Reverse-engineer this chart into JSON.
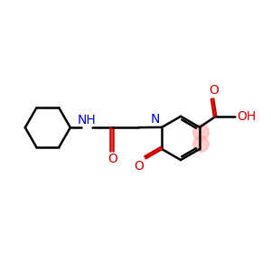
{
  "bg_color": "#ffffff",
  "bond_color": "#000000",
  "N_color": "#0000cc",
  "O_color": "#cc0000",
  "bond_width": 1.8,
  "font_size": 10,
  "figsize": [
    3.0,
    3.0
  ],
  "dpi": 100,
  "xlim": [
    0,
    10
  ],
  "ylim": [
    0,
    10
  ],
  "pink": "#ffaaaa",
  "pink_alpha": 0.6
}
